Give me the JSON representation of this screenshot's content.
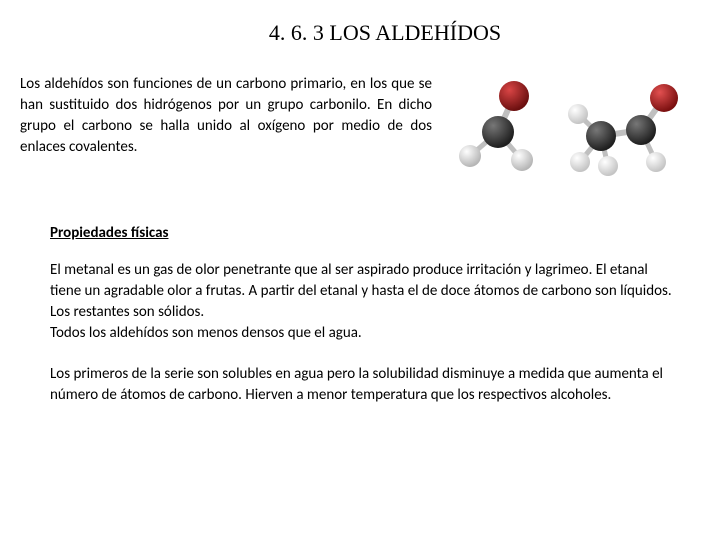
{
  "title": "4. 6. 3 LOS ALDEHÍDOS",
  "intro": "Los aldehídos son funciones de un carbono primario, en los que se han sustituido dos hidrógenos por un grupo carbonilo. En dicho grupo el carbono se halla unido al oxígeno por medio de dos enlaces covalentes.",
  "subtitle": "Propiedades físicas",
  "para1": "El metanal es un gas de olor penetrante que al  ser aspirado produce irritación y lagrimeo. El etanal tiene un agradable olor a frutas. A partir del etanal y hasta el de doce átomos de carbono son líquidos. Los restantes son sólidos.\nTodos los aldehídos son menos densos que el agua.",
  "para2": "Los primeros de la serie son solubles en agua pero la solubilidad disminuye a medida que aumenta el número de átomos de carbono. Hierven a menor temperatura que los respectivos alcoholes.",
  "mol1": {
    "type": "molecule-3d",
    "name": "formaldehyde",
    "atoms": {
      "oxygen_color": "#8b1a1a",
      "carbon_color": "#3a3a3a",
      "hydrogen_color": "#d8d8d8",
      "bond_color": "#bfbfbf"
    }
  },
  "mol2": {
    "type": "molecule-3d",
    "name": "acetaldehyde",
    "atoms": {
      "oxygen_color": "#a01818",
      "carbon_color": "#3a3a3a",
      "hydrogen_color": "#e6e6e6",
      "bond_color": "#bfbfbf"
    }
  }
}
